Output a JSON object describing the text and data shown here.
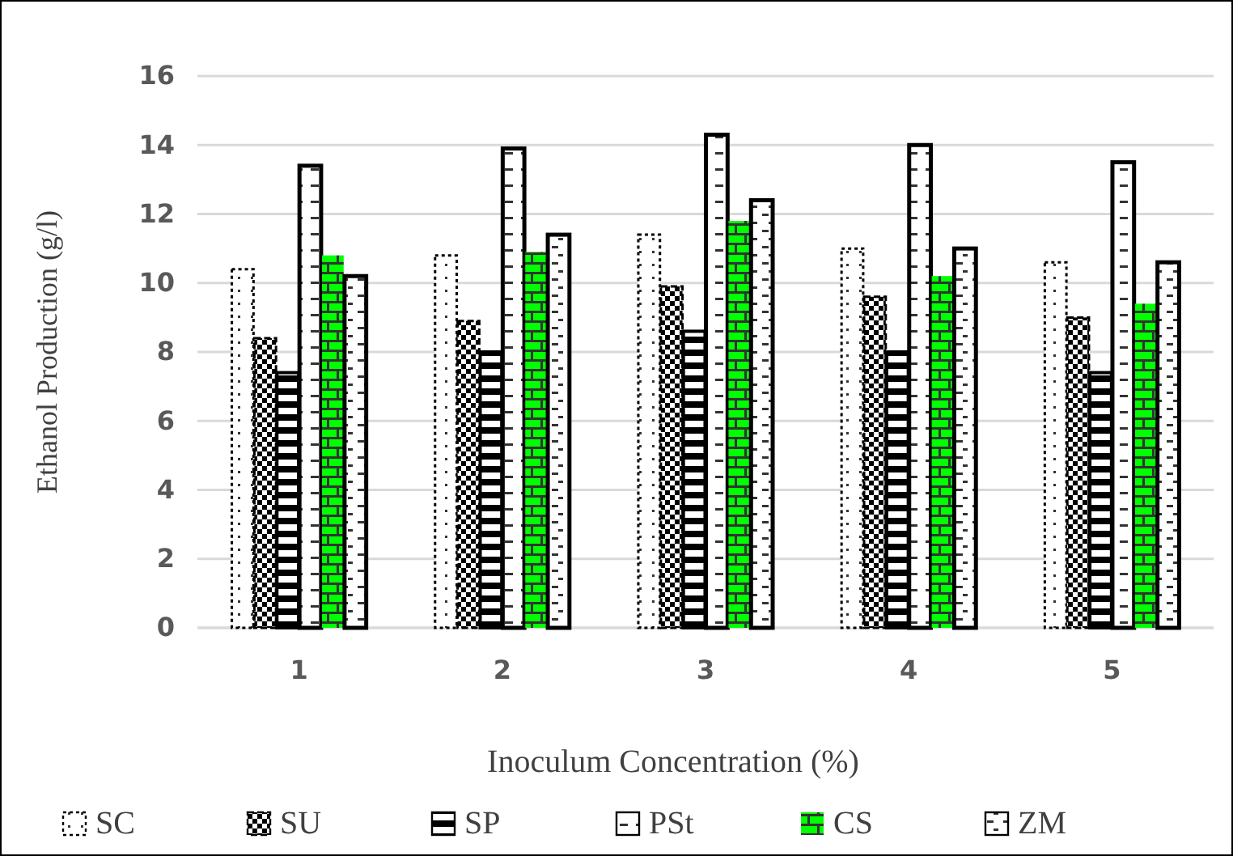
{
  "chart_data": {
    "type": "bar",
    "xlabel": "Inoculum Concentration (%)",
    "ylabel": "Ethanol Production (g/l)",
    "categories": [
      "1",
      "2",
      "3",
      "4",
      "5"
    ],
    "series": [
      {
        "name": "SC",
        "color": "#000000",
        "values": [
          10.4,
          10.8,
          11.4,
          11.0,
          10.6
        ]
      },
      {
        "name": "SU",
        "color": "#000000",
        "values": [
          8.4,
          8.9,
          9.9,
          9.6,
          9.0
        ]
      },
      {
        "name": "SP",
        "color": "#000000",
        "values": [
          7.4,
          8.0,
          8.6,
          8.0,
          7.4
        ]
      },
      {
        "name": "PSt",
        "color": "#000000",
        "values": [
          13.4,
          13.9,
          14.3,
          14.0,
          13.5
        ]
      },
      {
        "name": "CS",
        "color": "#00ff00",
        "values": [
          10.8,
          10.9,
          11.8,
          10.2,
          9.4
        ]
      },
      {
        "name": "ZM",
        "color": "#000000",
        "values": [
          10.2,
          11.4,
          12.4,
          11.0,
          10.6
        ]
      }
    ],
    "ylim": [
      0,
      16
    ],
    "yticks": [
      0,
      2,
      4,
      6,
      8,
      10,
      12,
      14,
      16
    ],
    "grid": "y",
    "legend": "bottom"
  }
}
